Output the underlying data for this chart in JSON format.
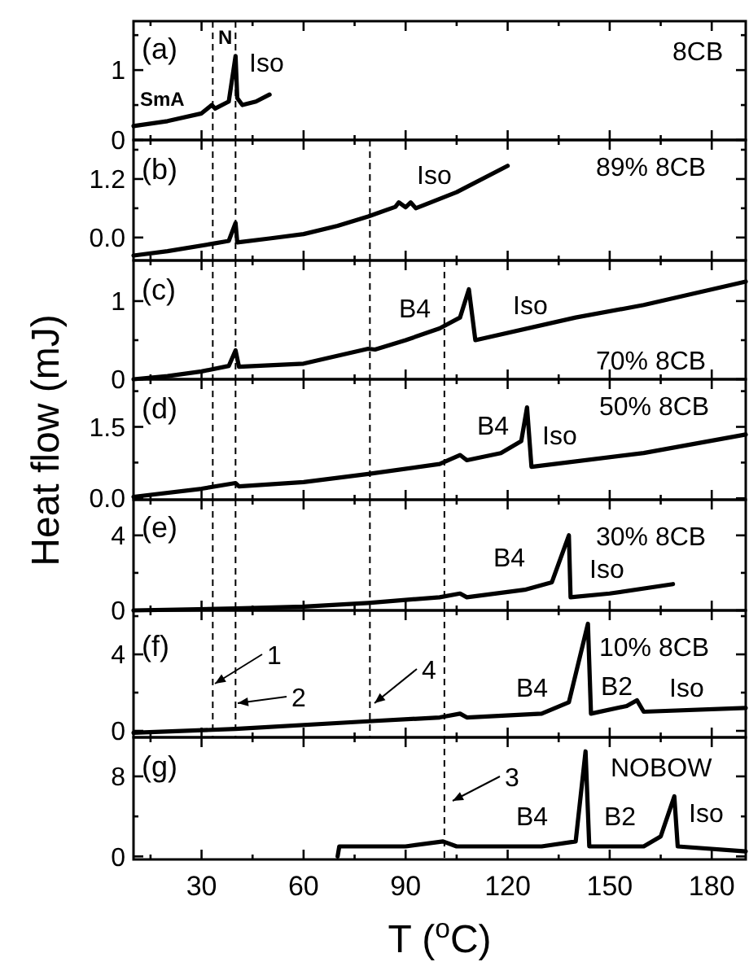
{
  "chart_data": [
    {
      "type": "line",
      "x": [
        10,
        20,
        30,
        33,
        34,
        38,
        40,
        40.5,
        42,
        46,
        50
      ],
      "series": [
        {
          "color": "#000000",
          "values": [
            0.2,
            0.27,
            0.38,
            0.5,
            0.45,
            0.55,
            1.2,
            0.6,
            0.5,
            0.55,
            0.65
          ]
        }
      ],
      "xlim": [
        10,
        190
      ],
      "xticks": [
        {
          "value": 15,
          "label": null
        },
        30,
        {
          "value": 45,
          "label": null
        },
        60,
        {
          "value": 75,
          "label": null
        },
        90,
        {
          "value": 105,
          "label": null
        },
        120,
        {
          "value": 135,
          "label": null
        },
        150,
        {
          "value": 165,
          "label": null
        },
        180
      ],
      "ylim": [
        0,
        1.7
      ],
      "yticks": [
        0,
        {
          "value": 0.5,
          "label": null
        },
        1,
        {
          "value": 1.5,
          "label": null
        }
      ],
      "tick_labels": "y",
      "line_style": "solid",
      "ref_lines": [
        {
          "axis": "x",
          "value": 33.3
        },
        {
          "axis": "x",
          "value": 40
        }
      ],
      "annotations": [
        "(a)",
        "SmA",
        "N",
        "Iso",
        "8CB"
      ]
    },
    {
      "type": "line",
      "x": [
        10,
        20,
        33,
        38,
        40,
        40.5,
        50,
        60,
        70,
        79,
        87,
        88,
        90,
        91.5,
        93,
        105,
        120
      ],
      "series": [
        {
          "color": "#000000",
          "values": [
            -0.37,
            -0.28,
            -0.13,
            -0.07,
            0.3,
            -0.1,
            -0.02,
            0.07,
            0.24,
            0.43,
            0.63,
            0.72,
            0.62,
            0.72,
            0.6,
            0.93,
            1.47
          ]
        }
      ],
      "xlim": [
        10,
        190
      ],
      "xticks": [
        {
          "value": 15,
          "label": null
        },
        30,
        {
          "value": 45,
          "label": null
        },
        60,
        {
          "value": 75,
          "label": null
        },
        90,
        {
          "value": 105,
          "label": null
        },
        120,
        {
          "value": 135,
          "label": null
        },
        150,
        {
          "value": 165,
          "label": null
        },
        180
      ],
      "ylim": [
        -0.47,
        2.0
      ],
      "yticks": [
        {
          "value": 0,
          "label": "0.0"
        },
        {
          "value": 0.6,
          "label": null
        },
        {
          "value": 1.2,
          "label": "1.2"
        },
        {
          "value": 1.8,
          "label": null
        }
      ],
      "tick_labels": "y",
      "line_style": "solid",
      "ref_lines": [
        {
          "axis": "x",
          "value": 33.3
        },
        {
          "axis": "x",
          "value": 40
        },
        {
          "axis": "x",
          "value": 79.5
        }
      ],
      "annotations": [
        "(b)",
        "Iso",
        "89% 8CB"
      ]
    },
    {
      "type": "line",
      "x": [
        10,
        20,
        30,
        38,
        40,
        41,
        60,
        79,
        81,
        90,
        100,
        106,
        108.6,
        110.5,
        140,
        160,
        190
      ],
      "series": [
        {
          "color": "#000000",
          "values": [
            0,
            0.04,
            0.1,
            0.17,
            0.37,
            0.16,
            0.2,
            0.39,
            0.38,
            0.5,
            0.65,
            0.79,
            1.15,
            0.5,
            0.79,
            0.95,
            1.25
          ]
        }
      ],
      "xlim": [
        10,
        190
      ],
      "xticks": [
        {
          "value": 15,
          "label": null
        },
        30,
        {
          "value": 45,
          "label": null
        },
        60,
        {
          "value": 75,
          "label": null
        },
        90,
        {
          "value": 105,
          "label": null
        },
        120,
        {
          "value": 135,
          "label": null
        },
        150,
        {
          "value": 165,
          "label": null
        },
        180
      ],
      "ylim": [
        0,
        1.52
      ],
      "yticks": [
        0,
        {
          "value": 0.5,
          "label": null
        },
        1
      ],
      "tick_labels": "y",
      "line_style": "solid",
      "ref_lines": [
        {
          "axis": "x",
          "value": 33.3
        },
        {
          "axis": "x",
          "value": 40
        },
        {
          "axis": "x",
          "value": 79.5
        },
        {
          "axis": "x",
          "value": 101.4
        }
      ],
      "annotations": [
        "(c)",
        "B4",
        "Iso",
        "70% 8CB"
      ]
    },
    {
      "type": "line",
      "x": [
        10,
        30,
        40,
        41,
        60,
        79,
        100,
        106,
        108,
        118,
        124,
        125.7,
        127,
        160,
        190
      ],
      "series": [
        {
          "color": "#000000",
          "values": [
            0.03,
            0.2,
            0.32,
            0.25,
            0.34,
            0.51,
            0.72,
            0.91,
            0.8,
            0.95,
            1.2,
            1.91,
            0.66,
            0.95,
            1.34
          ]
        }
      ],
      "xlim": [
        10,
        190
      ],
      "xticks": [
        {
          "value": 15,
          "label": null
        },
        30,
        {
          "value": 45,
          "label": null
        },
        60,
        {
          "value": 75,
          "label": null
        },
        90,
        {
          "value": 105,
          "label": null
        },
        120,
        {
          "value": 135,
          "label": null
        },
        150,
        {
          "value": 165,
          "label": null
        },
        180
      ],
      "ylim": [
        -0.03,
        2.5
      ],
      "yticks": [
        {
          "value": 0,
          "label": "0.0"
        },
        {
          "value": 0.75,
          "label": null
        },
        1.5,
        {
          "value": 2.25,
          "label": null
        }
      ],
      "tick_labels": "y",
      "line_style": "solid",
      "ylabel": "Heat flow (mJ)",
      "ref_lines": [
        {
          "axis": "x",
          "value": 33.3
        },
        {
          "axis": "x",
          "value": 40
        },
        {
          "axis": "x",
          "value": 79.5
        },
        {
          "axis": "x",
          "value": 101.4
        }
      ],
      "annotations": [
        "(d)",
        "B4",
        "Iso",
        "50% 8CB"
      ]
    },
    {
      "type": "line",
      "x": [
        10,
        40,
        60,
        79,
        100,
        106,
        108,
        125,
        133,
        138,
        138.5,
        150,
        168.6
      ],
      "series": [
        {
          "color": "#000000",
          "values": [
            0,
            0.1,
            0.2,
            0.4,
            0.7,
            0.9,
            0.7,
            1.1,
            1.5,
            4.0,
            0.7,
            0.9,
            1.4
          ]
        }
      ],
      "xlim": [
        10,
        190
      ],
      "xticks": [
        {
          "value": 15,
          "label": null
        },
        30,
        {
          "value": 45,
          "label": null
        },
        60,
        {
          "value": 75,
          "label": null
        },
        90,
        {
          "value": 105,
          "label": null
        },
        120,
        {
          "value": 135,
          "label": null
        },
        150,
        {
          "value": 165,
          "label": null
        },
        180
      ],
      "ylim": [
        0,
        5.9
      ],
      "yticks": [
        0,
        {
          "value": 2,
          "label": null
        },
        4
      ],
      "tick_labels": "y",
      "line_style": "solid",
      "ref_lines": [
        {
          "axis": "x",
          "value": 33.3
        },
        {
          "axis": "x",
          "value": 40
        },
        {
          "axis": "x",
          "value": 79.5
        },
        {
          "axis": "x",
          "value": 101.4
        }
      ],
      "annotations": [
        "(e)",
        "B4",
        "Iso",
        "30% 8CB"
      ]
    },
    {
      "type": "line",
      "x": [
        10,
        40,
        79,
        100,
        106,
        108,
        130,
        138,
        143.6,
        144.5,
        155,
        158,
        160,
        190
      ],
      "series": [
        {
          "color": "#000000",
          "values": [
            -0.1,
            0.1,
            0.5,
            0.7,
            0.9,
            0.7,
            0.9,
            1.5,
            5.6,
            0.9,
            1.3,
            1.6,
            1.0,
            1.2
          ]
        }
      ],
      "xlim": [
        10,
        190
      ],
      "xticks": [
        {
          "value": 15,
          "label": null
        },
        30,
        {
          "value": 45,
          "label": null
        },
        60,
        {
          "value": 75,
          "label": null
        },
        90,
        {
          "value": 105,
          "label": null
        },
        120,
        {
          "value": 135,
          "label": null
        },
        150,
        {
          "value": 165,
          "label": null
        },
        180
      ],
      "ylim": [
        -0.34,
        6.3
      ],
      "yticks": [
        0,
        {
          "value": 2,
          "label": null
        },
        4,
        {
          "value": 6,
          "label": null
        }
      ],
      "tick_labels": "y",
      "line_style": "solid",
      "ref_lines": [
        {
          "axis": "x",
          "value": 33.3
        },
        {
          "axis": "x",
          "value": 40
        },
        {
          "axis": "x",
          "value": 79.5
        },
        {
          "axis": "x",
          "value": 101.4
        }
      ],
      "annotations": [
        "(f)",
        "1",
        "2",
        "4",
        "B4",
        "B2",
        "Iso",
        "10% 8CB"
      ]
    },
    {
      "type": "line",
      "x": [
        70,
        70.5,
        90,
        101,
        105,
        130,
        140,
        142.9,
        144,
        160,
        165,
        169,
        170,
        190
      ],
      "series": [
        {
          "color": "#000000",
          "values": [
            0,
            1.0,
            1.0,
            1.5,
            1.0,
            1.0,
            1.5,
            10.5,
            1.0,
            1.0,
            2.0,
            6.0,
            1.0,
            0.5
          ]
        }
      ],
      "xlim": [
        10,
        190
      ],
      "xticks": [
        {
          "value": 15,
          "label": null
        },
        30,
        {
          "value": 45,
          "label": null
        },
        60,
        {
          "value": 75,
          "label": null
        },
        90,
        {
          "value": 105,
          "label": null
        },
        120,
        {
          "value": 135,
          "label": null
        },
        150,
        {
          "value": 165,
          "label": null
        },
        180
      ],
      "ylim": [
        -0.3,
        11.9
      ],
      "yticks": [
        0,
        {
          "value": 4,
          "label": null
        },
        8
      ],
      "line_style": "solid",
      "xlabel": "T ($^{o}$C)",
      "ref_lines": [
        {
          "axis": "x",
          "value": 101.4
        }
      ],
      "annotations": [
        "(g)",
        "3",
        "B4",
        "B2",
        "Iso",
        "NOBOW"
      ]
    }
  ]
}
